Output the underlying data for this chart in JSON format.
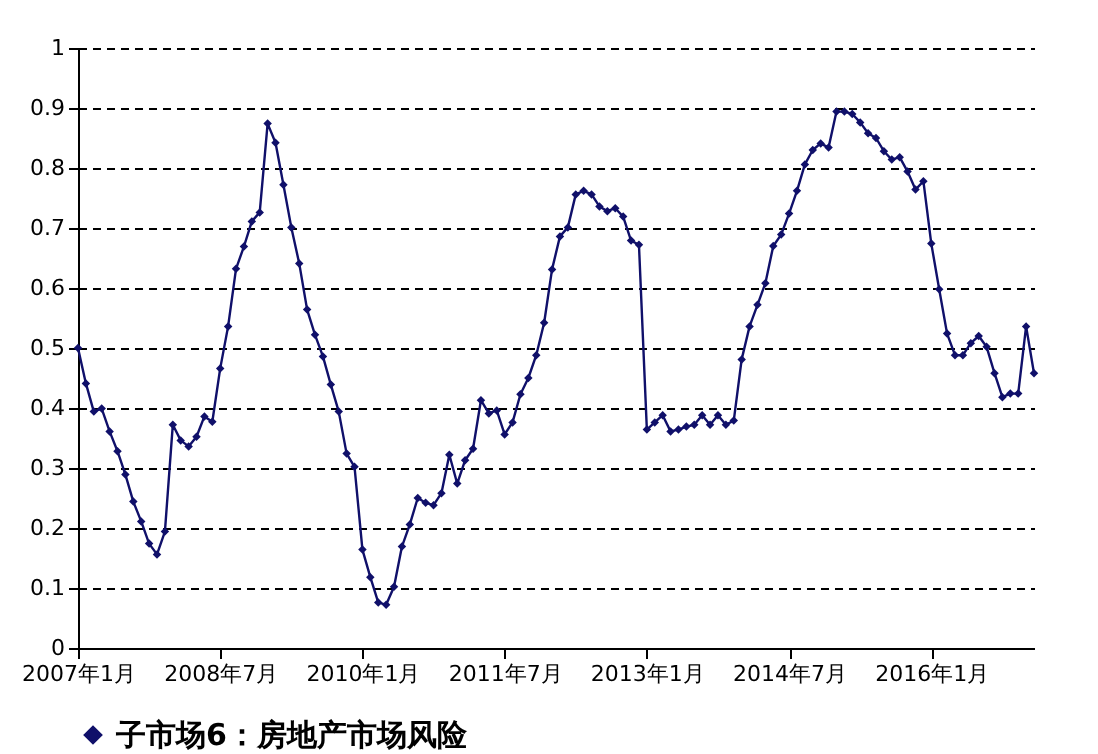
{
  "chart_data": {
    "type": "line",
    "categories": [
      "2007年1月",
      null,
      null,
      null,
      null,
      null,
      null,
      null,
      null,
      null,
      null,
      null,
      null,
      null,
      null,
      null,
      null,
      null,
      "2008年7月",
      null,
      null,
      null,
      null,
      null,
      null,
      null,
      null,
      null,
      null,
      null,
      null,
      null,
      null,
      null,
      null,
      null,
      "2010年1月",
      null,
      null,
      null,
      null,
      null,
      null,
      null,
      null,
      null,
      null,
      null,
      null,
      null,
      null,
      null,
      null,
      null,
      "2011年7月",
      null,
      null,
      null,
      null,
      null,
      null,
      null,
      null,
      null,
      null,
      null,
      null,
      null,
      null,
      null,
      null,
      null,
      "2013年1月",
      null,
      null,
      null,
      null,
      null,
      null,
      null,
      null,
      null,
      null,
      null,
      null,
      null,
      null,
      null,
      null,
      null,
      "2014年7月",
      null,
      null,
      null,
      null,
      null,
      null,
      null,
      null,
      null,
      null,
      null,
      null,
      null,
      null,
      null,
      null,
      null,
      "2016年1月",
      null,
      null,
      null,
      null,
      null,
      null,
      null,
      null,
      null,
      null,
      null,
      null,
      null
    ],
    "series": [
      {
        "name": "子市场6：房地产市场风险",
        "color": "#10106a",
        "values": [
          0.5,
          0.441,
          0.394,
          0.399,
          0.361,
          0.328,
          0.289,
          0.244,
          0.211,
          0.174,
          0.156,
          0.194,
          0.372,
          0.346,
          0.336,
          0.352,
          0.386,
          0.377,
          0.466,
          0.536,
          0.632,
          0.669,
          0.711,
          0.726,
          0.874,
          0.842,
          0.772,
          0.701,
          0.641,
          0.564,
          0.522,
          0.486,
          0.439,
          0.394,
          0.324,
          0.302,
          0.164,
          0.118,
          0.076,
          0.072,
          0.102,
          0.169,
          0.206,
          0.25,
          0.242,
          0.238,
          0.258,
          0.322,
          0.274,
          0.313,
          0.332,
          0.413,
          0.391,
          0.396,
          0.356,
          0.376,
          0.423,
          0.45,
          0.488,
          0.542,
          0.631,
          0.686,
          0.701,
          0.756,
          0.762,
          0.756,
          0.736,
          0.728,
          0.733,
          0.719,
          0.679,
          0.672,
          0.364,
          0.376,
          0.388,
          0.361,
          0.364,
          0.369,
          0.372,
          0.388,
          0.372,
          0.388,
          0.372,
          0.379,
          0.481,
          0.536,
          0.572,
          0.608,
          0.67,
          0.689,
          0.724,
          0.762,
          0.806,
          0.83,
          0.841,
          0.834,
          0.894,
          0.894,
          0.89,
          0.876,
          0.858,
          0.85,
          0.828,
          0.814,
          0.818,
          0.794,
          0.764,
          0.778,
          0.674,
          0.598,
          0.524,
          0.488,
          0.488,
          0.508,
          0.52,
          0.502,
          0.458,
          0.418,
          0.424,
          0.424,
          0.536,
          0.458
        ]
      }
    ],
    "ylim": [
      0,
      1
    ],
    "yticks": [
      0,
      0.1,
      0.2,
      0.3,
      0.4,
      0.5,
      0.6,
      0.7,
      0.8,
      0.9,
      1
    ],
    "grid": "y",
    "legend": "bottom",
    "marker": "diamond",
    "line_style": "solid"
  }
}
